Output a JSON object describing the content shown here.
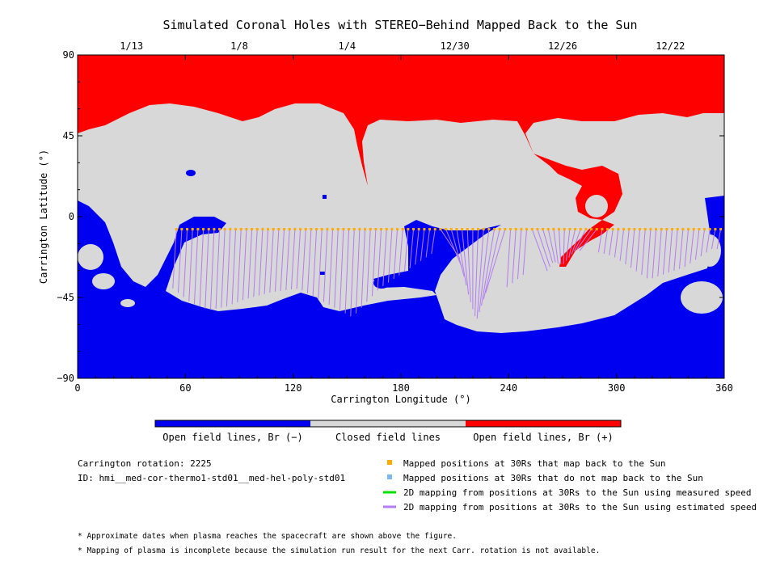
{
  "chart_data": {
    "type": "map",
    "title": "Simulated Coronal Holes with STEREO−Behind Mapped Back to the Sun",
    "xlabel": "Carrington Longitude (°)",
    "ylabel": "Carrington Latitude (°)",
    "xlim": [
      0,
      360
    ],
    "ylim": [
      -90,
      90
    ],
    "x_ticks": [
      "0",
      "60",
      "120",
      "180",
      "240",
      "300",
      "360"
    ],
    "y_ticks": [
      "90",
      "45",
      "0",
      "−45",
      "−90"
    ],
    "top_axis_dates": [
      {
        "label": "1/13",
        "lon": 30
      },
      {
        "label": "1/8",
        "lon": 90
      },
      {
        "label": "1/4",
        "lon": 150
      },
      {
        "label": "12/30",
        "lon": 210
      },
      {
        "label": "12/26",
        "lon": 270
      },
      {
        "label": "12/22",
        "lon": 330
      }
    ],
    "colors": {
      "open_negative": "#0000f0",
      "closed": "#d8d8d8",
      "open_positive": "#ff0000",
      "mapped_points": "#ffaa00",
      "unmapped_points": "#7ab8f0",
      "measured_speed_line": "#00e000",
      "estimated_speed_line": "#b27cf2"
    },
    "colorbar": {
      "labels": [
        "Open field lines, Br (−)",
        "Closed field lines",
        "Open field lines, Br (+)"
      ]
    },
    "mapped_track": {
      "latitude": -7,
      "lon_start": 55,
      "lon_end": 358,
      "footpoints": [
        {
          "lon": 55,
          "lat": -40
        },
        {
          "lon": 65,
          "lat": -48
        },
        {
          "lon": 75,
          "lat": -52
        },
        {
          "lon": 85,
          "lat": -50
        },
        {
          "lon": 95,
          "lat": -46
        },
        {
          "lon": 110,
          "lat": -42
        },
        {
          "lon": 125,
          "lat": -40
        },
        {
          "lon": 140,
          "lat": -48
        },
        {
          "lon": 155,
          "lat": -56
        },
        {
          "lon": 170,
          "lat": -40
        },
        {
          "lon": 185,
          "lat": -30
        },
        {
          "lon": 200,
          "lat": -20
        },
        {
          "lon": 215,
          "lat": -45
        },
        {
          "lon": 225,
          "lat": -58
        },
        {
          "lon": 240,
          "lat": -40
        },
        {
          "lon": 260,
          "lat": -25
        },
        {
          "lon": 270,
          "lat": -27
        },
        {
          "lon": 285,
          "lat": -18
        },
        {
          "lon": 300,
          "lat": -22
        },
        {
          "lon": 320,
          "lat": -35
        },
        {
          "lon": 340,
          "lat": -28
        },
        {
          "lon": 355,
          "lat": -18
        }
      ]
    }
  },
  "info": {
    "rotation": "Carrington rotation: 2225",
    "id": "ID: hmi__med-cor-thermo1-std01__med-hel-poly-std01"
  },
  "legend": {
    "mapped": "Mapped positions at 30Rs that map back to the Sun",
    "unmapped": "Mapped positions at 30Rs that do not map back to the Sun",
    "measured": "2D mapping from positions at 30Rs to the Sun using measured speed",
    "estimated": "2D mapping from positions at 30Rs to the Sun using estimated speed"
  },
  "notes": {
    "note1": "* Approximate dates when plasma reaches the spacecraft are shown above the figure.",
    "note2": "* Mapping of plasma is incomplete because the simulation run result for the next Carr. rotation is not available."
  }
}
